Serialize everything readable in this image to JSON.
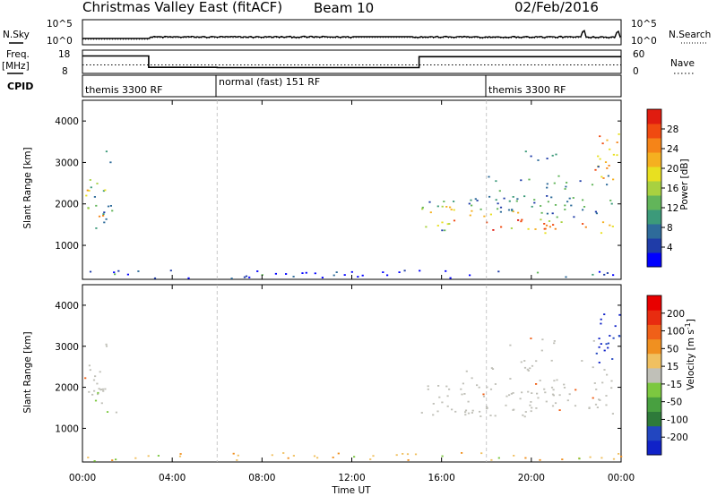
{
  "header": {
    "title": "Christmas Valley East (fitACF)",
    "beam": "Beam 10",
    "date": "02/Feb/2016"
  },
  "panel_labels": {
    "nsky": "N.Sky",
    "nsearch": "N.Search",
    "freq_line1": "Freq.",
    "freq_line2": "[MHz]",
    "nave": "Nave",
    "cpid": "CPID"
  },
  "noise_ticks": {
    "high": "10^5",
    "low": "10^0"
  },
  "freq_ticks": [
    "18",
    "8"
  ],
  "nave_ticks": [
    "60",
    "0"
  ],
  "cpid_segments": [
    {
      "label": "themis 3300 RF",
      "start_h": 0
    },
    {
      "label": "normal (fast) 151 RF",
      "start_h": 6
    },
    {
      "label": "themis 3300 RF",
      "start_h": 18
    }
  ],
  "chart_data": [
    {
      "type": "line",
      "panel": "noise",
      "series": [
        {
          "name": "N.Sky",
          "style": "solid"
        },
        {
          "name": "N.Search",
          "style": "dotted"
        }
      ],
      "ylim": [
        1,
        100000
      ],
      "log_scale": true
    },
    {
      "type": "line",
      "panel": "frequency-nave",
      "ylabel": "Freq. [MHz]",
      "ylim": [
        8,
        18
      ],
      "y2lim": [
        0,
        60
      ],
      "series": [
        {
          "name": "Freq.",
          "style": "solid",
          "points": [
            [
              0,
              15.5
            ],
            [
              2.95,
              15.5
            ],
            [
              2.95,
              10.6
            ],
            [
              6,
              10.6
            ],
            [
              6,
              10.5
            ],
            [
              15,
              10.5
            ],
            [
              15,
              15.2
            ],
            [
              24,
              15.2
            ]
          ]
        },
        {
          "name": "Nave",
          "style": "dotted",
          "points": [
            [
              0,
              22
            ],
            [
              24,
              22
            ]
          ]
        }
      ]
    },
    {
      "type": "heatmap",
      "panel": "power",
      "ylabel": "Slant Range [km]",
      "xlabel": "Time UT",
      "xlim": [
        0,
        24
      ],
      "ylim": [
        180,
        4500
      ],
      "yticks": [
        1000,
        2000,
        3000,
        4000
      ],
      "colorbar": {
        "label": "Power [dB]",
        "range": [
          0,
          32
        ],
        "ticks": [
          "28",
          "24",
          "20",
          "16",
          "12",
          "8",
          "4"
        ],
        "colors": [
          "#0000ff",
          "#1f3ca8",
          "#2e6b9a",
          "#3c9a7a",
          "#62b55a",
          "#a8d140",
          "#e8e020",
          "#f5b020",
          "#f58418",
          "#f04a10",
          "#e01c10"
        ]
      }
    },
    {
      "type": "heatmap",
      "panel": "velocity",
      "ylabel": "Slant Range [km]",
      "xlabel": "Time UT",
      "xlim": [
        0,
        24
      ],
      "ylim": [
        180,
        4500
      ],
      "yticks": [
        1000,
        2000,
        3000,
        4000
      ],
      "colorbar": {
        "label": "Velocity [m s^-1]",
        "ticks": [
          "200",
          "100",
          "50",
          "15",
          "-15",
          "-50",
          "-100",
          "-200"
        ],
        "colors": [
          "#1022c8",
          "#2246c0",
          "#2e7a3a",
          "#48a040",
          "#7cc840",
          "#c0c0b8",
          "#f0c060",
          "#f09020",
          "#f06018",
          "#e82c10",
          "#e80000"
        ]
      }
    }
  ],
  "xaxis": {
    "ticks": [
      "00:00",
      "04:00",
      "08:00",
      "12:00",
      "16:00",
      "20:00",
      "00:00"
    ],
    "label": "Time UT"
  }
}
